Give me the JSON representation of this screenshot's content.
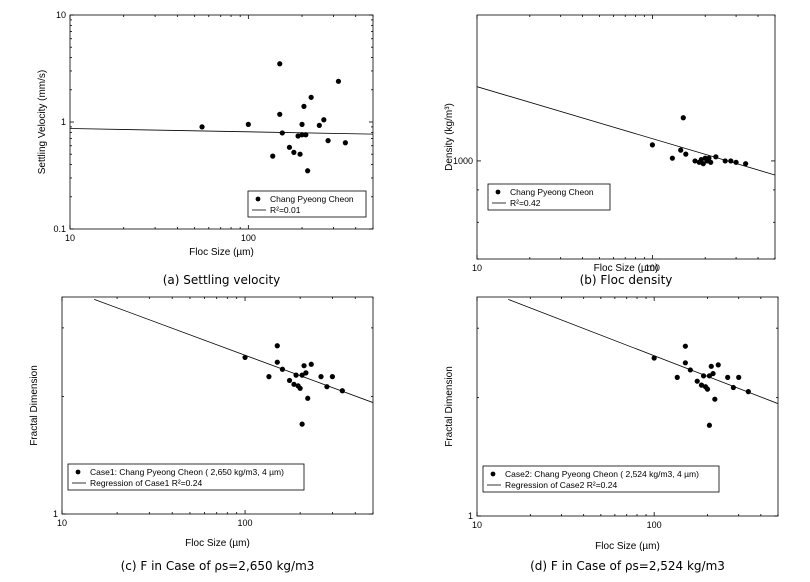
{
  "chart_data": [
    {
      "type": "scatter",
      "caption": "(a) Settling velocity",
      "xlabel": "Floc Size (µm)",
      "ylabel": "Settling Velocity (mm/s)",
      "xscale": "log",
      "yscale": "log",
      "xlim": [
        10,
        500
      ],
      "ylim": [
        0.1,
        10
      ],
      "xticks": [
        "10",
        "100"
      ],
      "yticks": [
        "0.1",
        "1",
        "10"
      ],
      "series": [
        {
          "name": "Chang Pyeong Cheon",
          "kind": "points",
          "x": [
            55,
            100,
            137,
            150,
            150,
            155,
            170,
            180,
            190,
            195,
            200,
            200,
            205,
            210,
            215,
            225,
            250,
            265,
            280,
            320,
            350
          ],
          "y": [
            0.9,
            0.95,
            0.48,
            3.5,
            1.18,
            0.79,
            0.58,
            0.52,
            0.74,
            0.5,
            0.76,
            0.95,
            1.4,
            0.76,
            0.35,
            1.7,
            0.93,
            1.05,
            0.67,
            2.4,
            0.64
          ]
        },
        {
          "name": "R²=0.01",
          "kind": "line",
          "x": [
            10,
            500
          ],
          "y": [
            0.87,
            0.77
          ]
        }
      ],
      "legend": "bottom-right"
    },
    {
      "type": "scatter",
      "caption": "(b) Floc density",
      "xlabel": "Floc Size (µm)",
      "ylabel": "Density (kg/m³)",
      "xscale": "log",
      "yscale": "log",
      "xlim": [
        10,
        500
      ],
      "ylim": [
        700,
        1700
      ],
      "xticks": [
        "10",
        "100"
      ],
      "yticks": [
        "1000"
      ],
      "series": [
        {
          "name": "Chang Pyeong Cheon",
          "kind": "points",
          "x": [
            100,
            130,
            145,
            150,
            155,
            175,
            185,
            190,
            195,
            200,
            205,
            210,
            215,
            230,
            260,
            280,
            300,
            340
          ],
          "y": [
            1060,
            1010,
            1040,
            1170,
            1025,
            1000,
            995,
            1005,
            990,
            1010,
            1000,
            1010,
            995,
            1015,
            1000,
            1000,
            995,
            990
          ]
        },
        {
          "name": "R²=0.42",
          "kind": "line",
          "x": [
            10,
            500
          ],
          "y": [
            1310,
            950
          ]
        }
      ],
      "legend": "bottom-left"
    },
    {
      "type": "scatter",
      "caption": "(c) F in Case of ρs=2,650 kg/m3",
      "xlabel": "Floc Size (µm)",
      "ylabel": "Fractal Dimension",
      "xscale": "log",
      "yscale": "log",
      "xlim": [
        10,
        500
      ],
      "ylim": [
        1,
        3.6
      ],
      "xticks": [
        "10",
        "100"
      ],
      "yticks": [
        "1"
      ],
      "series": [
        {
          "name": "Case1: Chang Pyeong Cheon ( 2,650 kg/m3, 4 µm)",
          "kind": "points",
          "x": [
            100,
            135,
            150,
            160,
            175,
            185,
            190,
            195,
            200,
            205,
            210,
            215,
            220,
            230,
            260,
            280,
            300,
            340
          ],
          "y": [
            2.52,
            2.25,
            2.45,
            2.35,
            2.2,
            2.15,
            2.27,
            2.13,
            2.1,
            2.27,
            2.4,
            2.3,
            1.98,
            2.42,
            2.25,
            2.12,
            2.25,
            2.07
          ]
        },
        {
          "name": "Regression of Case1 R²=0.24",
          "kind": "line",
          "x": [
            15,
            500
          ],
          "y": [
            3.55,
            1.93
          ]
        }
      ],
      "outliers": {
        "x": [
          150,
          205
        ],
        "y": [
          2.7,
          1.7
        ]
      },
      "legend": "bottom-left"
    },
    {
      "type": "scatter",
      "caption": "(d) F in Case of ρs=2,524 kg/m3",
      "xlabel": "Floc Size (µm)",
      "ylabel": "Fractal Dimension",
      "xscale": "log",
      "yscale": "log",
      "xlim": [
        10,
        500
      ],
      "ylim": [
        1,
        3.6
      ],
      "xticks": [
        "10",
        "100"
      ],
      "yticks": [
        "1"
      ],
      "series": [
        {
          "name": "Case2: Chang Pyeong Cheon ( 2,524 kg/m3, 4 µm)",
          "kind": "points",
          "x": [
            100,
            135,
            150,
            160,
            175,
            185,
            190,
            195,
            200,
            205,
            210,
            215,
            220,
            230,
            260,
            280,
            300,
            340
          ],
          "y": [
            2.52,
            2.25,
            2.45,
            2.35,
            2.2,
            2.15,
            2.27,
            2.13,
            2.1,
            2.27,
            2.4,
            2.3,
            1.98,
            2.42,
            2.25,
            2.12,
            2.25,
            2.07
          ]
        },
        {
          "name": "Regression of Case2 R²=0.24",
          "kind": "line",
          "x": [
            15,
            500
          ],
          "y": [
            3.55,
            1.93
          ]
        }
      ],
      "outliers": {
        "x": [
          150,
          205
        ],
        "y": [
          2.7,
          1.7
        ]
      },
      "legend": "bottom-left"
    }
  ]
}
